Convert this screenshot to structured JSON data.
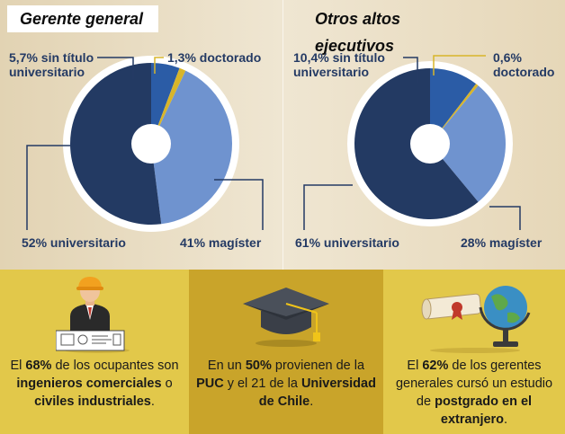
{
  "chart_data": [
    {
      "type": "pie",
      "title": "Gerente general",
      "categories": [
        "sin título universitario",
        "doctorado",
        "magíster",
        "universitario"
      ],
      "values": [
        5.7,
        1.3,
        41,
        52
      ],
      "labels": [
        "5,7% sin título universitario",
        "1,3% doctorado",
        "41% magíster",
        "52% universitario"
      ],
      "colors": [
        "#2b5ca6",
        "#d8b52a",
        "#6f93cf",
        "#233a63"
      ]
    },
    {
      "type": "pie",
      "title": "Otros altos ejecutivos",
      "categories": [
        "sin título universitario",
        "doctorado",
        "magíster",
        "universitario"
      ],
      "values": [
        10.4,
        0.6,
        28,
        61
      ],
      "labels": [
        "10,4% sin título universitario",
        "0,6% doctorado",
        "28% magíster",
        "61% universitario"
      ],
      "colors": [
        "#2b5ca6",
        "#d8b52a",
        "#6f93cf",
        "#233a63"
      ]
    }
  ],
  "left_chart": {
    "title": "Gerente general",
    "label_sin_titulo": [
      "5,7% sin título",
      "universitario"
    ],
    "label_doctorado": "1,3% doctorado",
    "label_magister": "41% magíster",
    "label_universitario": "52% universitario"
  },
  "right_chart": {
    "title": "Otros altos ejecutivos",
    "label_sin_titulo": [
      "10,4% sin título",
      "universitario"
    ],
    "label_doctorado": [
      "0,6%",
      "doctorado"
    ],
    "label_magister": "28% magíster",
    "label_universitario": "61% universitario"
  },
  "panels": {
    "p1": {
      "pre": "El ",
      "pct": "68%",
      "mid1": " de los ocupantes son ",
      "b1": "ingenieros comerciales",
      "mid2": " o ",
      "b2": "civiles industriales",
      "post": "."
    },
    "p2": {
      "pre": "En un ",
      "pct": "50%",
      "mid1": " provienen de la ",
      "b1": "PUC",
      "mid2": " y el 21 de la ",
      "b2": "Universidad de Chile",
      "post": "."
    },
    "p3": {
      "pre": "El ",
      "pct": "62%",
      "mid1": " de los gerentes generales cursó un estudio de ",
      "b1": "postgrado en el extranjero",
      "post": "."
    }
  }
}
